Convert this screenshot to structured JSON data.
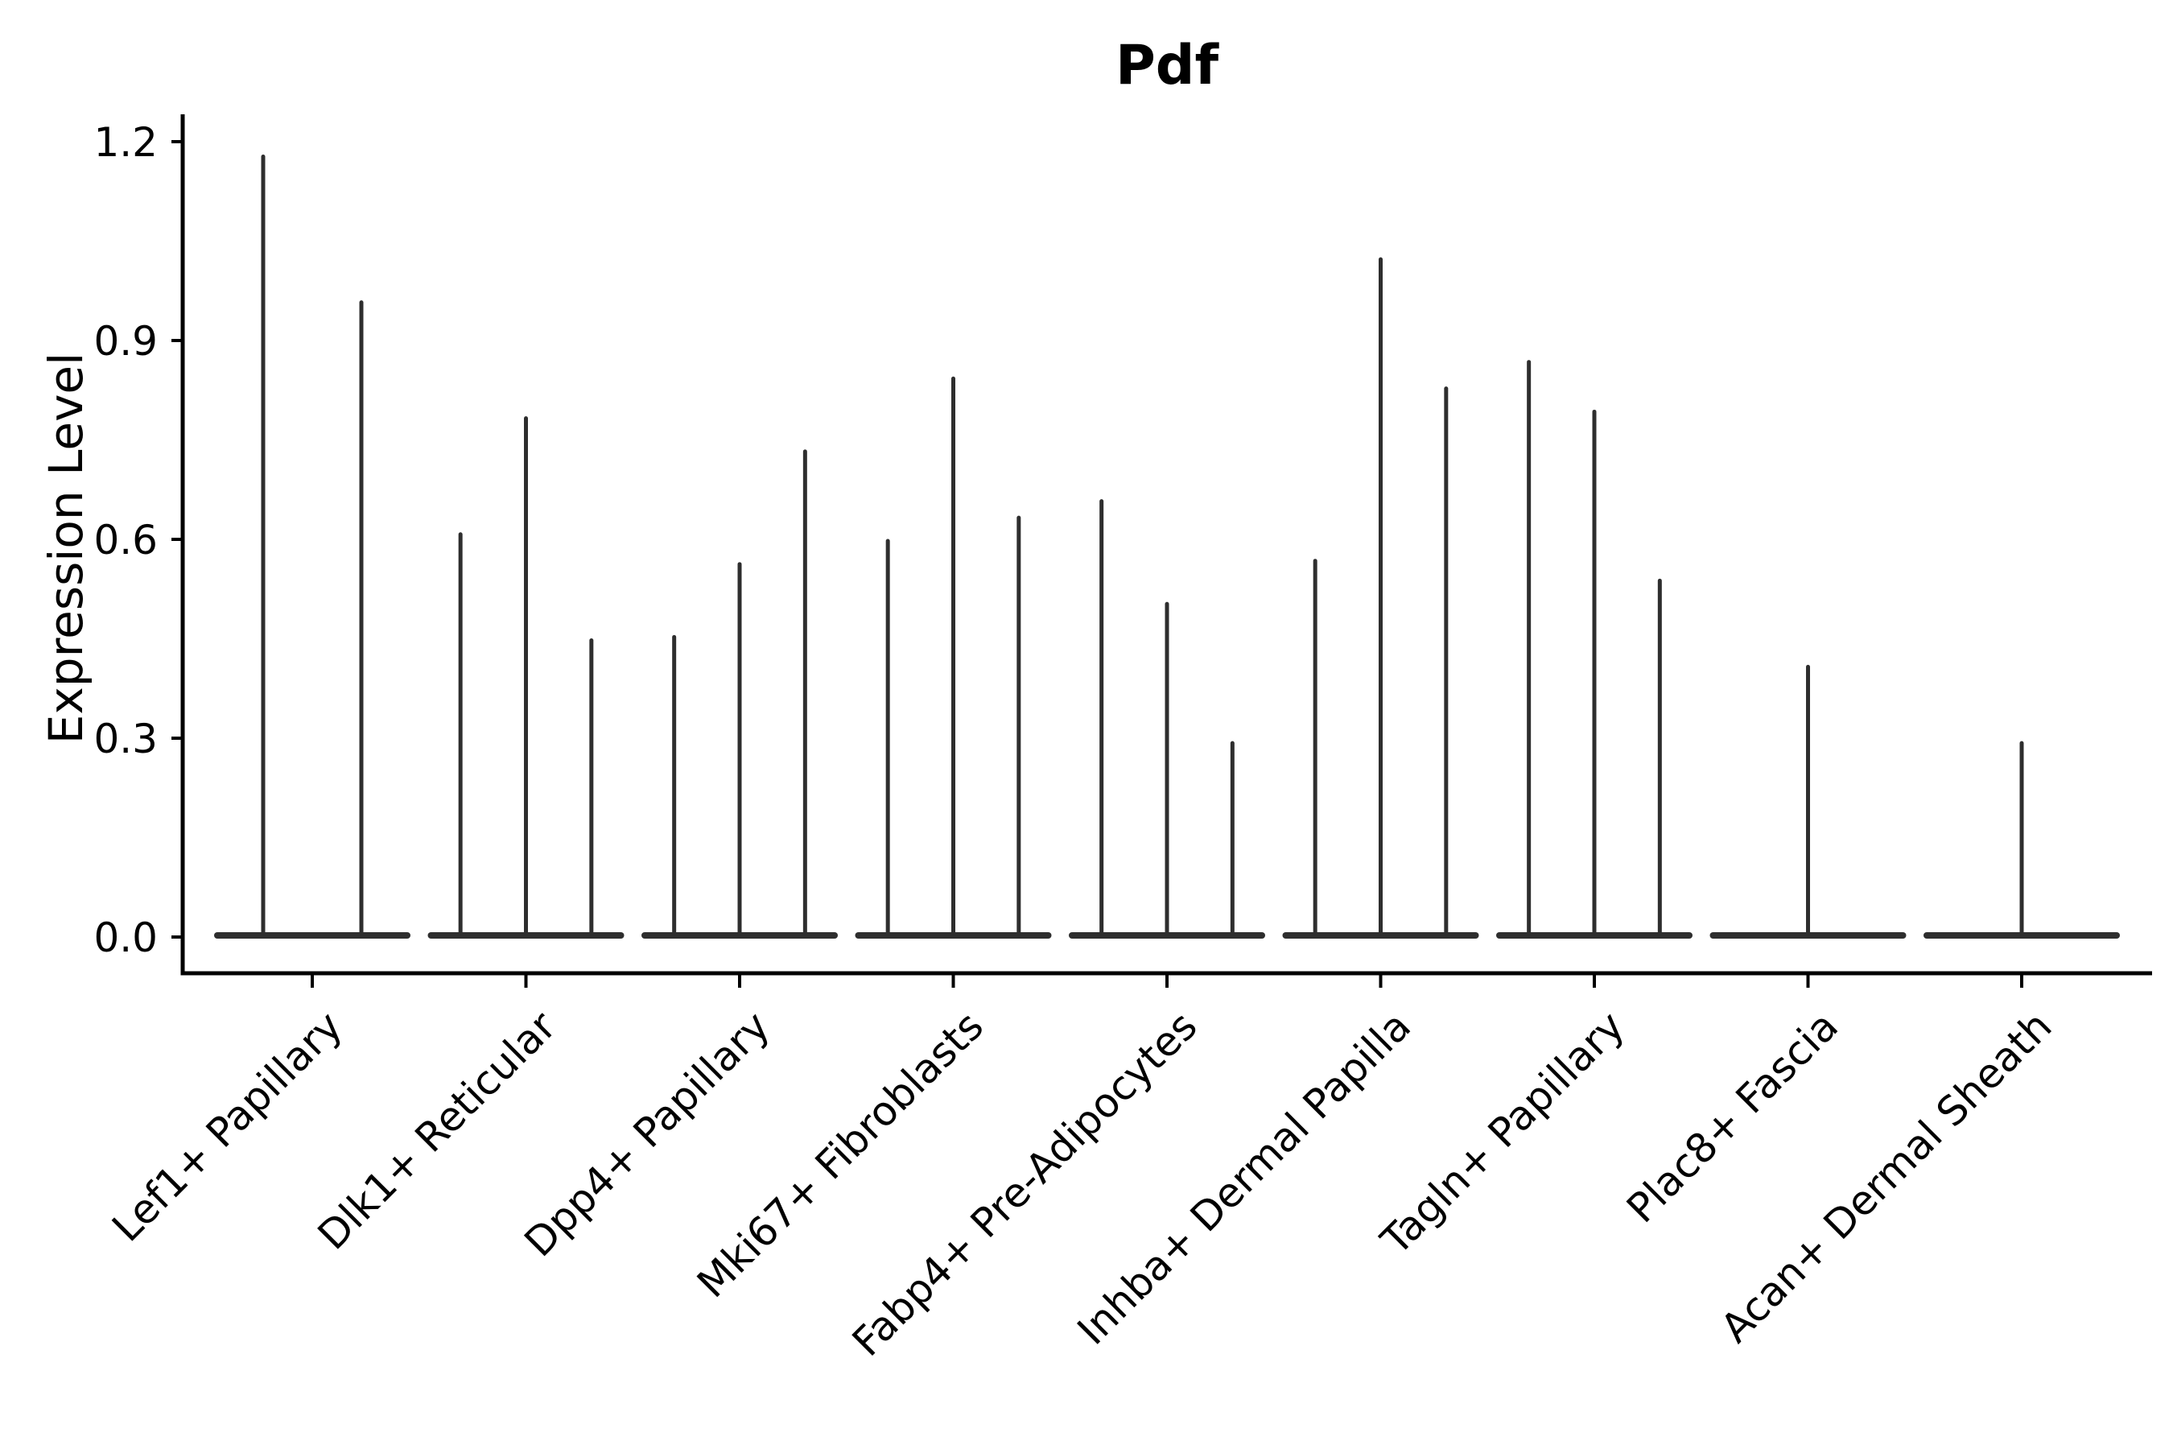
{
  "chart_data": {
    "type": "violin",
    "title": "Pdf",
    "ylabel": "Expression Level",
    "xlabel": "",
    "grid": false,
    "legend": "none",
    "yticks": [
      "0.0",
      "0.3",
      "0.6",
      "0.9",
      "1.2"
    ],
    "ylim": [
      -0.07,
      1.25
    ],
    "violin_color": "#2e2e2e",
    "axis_color": "#000000",
    "groups": [
      {
        "label": "Lef1+ Papillary",
        "violin_max_values": [
          1.18,
          0.96
        ]
      },
      {
        "label": "Dlk1+ Reticular",
        "violin_max_values": [
          0.61,
          0.785,
          0.45
        ]
      },
      {
        "label": "Dpp4+ Papillary",
        "violin_max_values": [
          0.455,
          0.565,
          0.735
        ]
      },
      {
        "label": "Mki67+ Fibroblasts",
        "violin_max_values": [
          0.6,
          0.845,
          0.635
        ]
      },
      {
        "label": "Fabp4+ Pre-Adipocytes",
        "violin_max_values": [
          0.66,
          0.505,
          0.295
        ]
      },
      {
        "label": "Inhba+ Dermal Papilla",
        "violin_max_values": [
          0.57,
          1.025,
          0.83
        ]
      },
      {
        "label": "Tagln+ Papillary",
        "violin_max_values": [
          0.87,
          0.795,
          0.54
        ]
      },
      {
        "label": "Plac8+ Fascia",
        "violin_max_values": [
          0.41
        ]
      },
      {
        "label": "Acan+ Dermal Sheath",
        "violin_max_values": [
          0.295
        ]
      }
    ]
  }
}
